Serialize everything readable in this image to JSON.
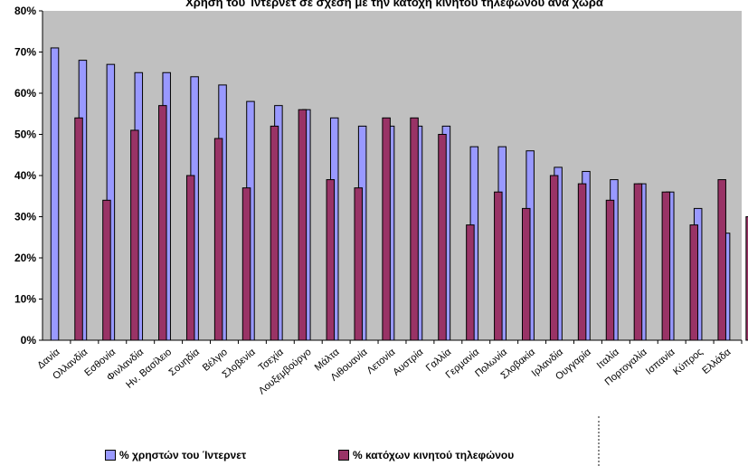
{
  "chart_data": {
    "type": "bar",
    "title": "Χρήση του Ίντερνετ σε σχέση με την κατοχή κινητού τηλεφώνου ανά χώρα",
    "categories": [
      "Δανία",
      "Ολλανδία",
      "Εσθονία",
      "Φινλανδία",
      "Ην. Βασίλειο",
      "Σουηδία",
      "Βέλγιο",
      "Σλοβενία",
      "Τσεχία",
      "Λουξεμβούργο",
      "Μάλτα",
      "Λιθουανία",
      "Λετονία",
      "Αυστρία",
      "Γαλλία",
      "Γερμανία",
      "Πολωνία",
      "Σλοβακία",
      "Ιρλανδία",
      "Ουγγαρία",
      "Ιταλία",
      "Πορτογαλία",
      "Ισπανία",
      "Κύπρος",
      "Ελλάδα"
    ],
    "series": [
      {
        "name": "% χρηστών του Ίντερνετ",
        "color": "#9999ff",
        "values": [
          71,
          68,
          67,
          65,
          65,
          64,
          62,
          58,
          57,
          56,
          54,
          52,
          52,
          52,
          52,
          47,
          47,
          46,
          42,
          41,
          39,
          38,
          36,
          32,
          26
        ]
      },
      {
        "name": "% κατόχων κινητού τηλεφώνου",
        "color": "#993366",
        "values": [
          54,
          34,
          51,
          57,
          40,
          49,
          37,
          52,
          56,
          39,
          37,
          54,
          54,
          50,
          28,
          36,
          32,
          40,
          38,
          34,
          38,
          36,
          28,
          39,
          30
        ]
      }
    ],
    "ylim": [
      0,
      80
    ],
    "yticks": [
      "0%",
      "10%",
      "20%",
      "30%",
      "40%",
      "50%",
      "60%",
      "70%",
      "80%"
    ],
    "grid": false,
    "plot_background": "#c0c0c0",
    "legend_position": "bottom"
  }
}
